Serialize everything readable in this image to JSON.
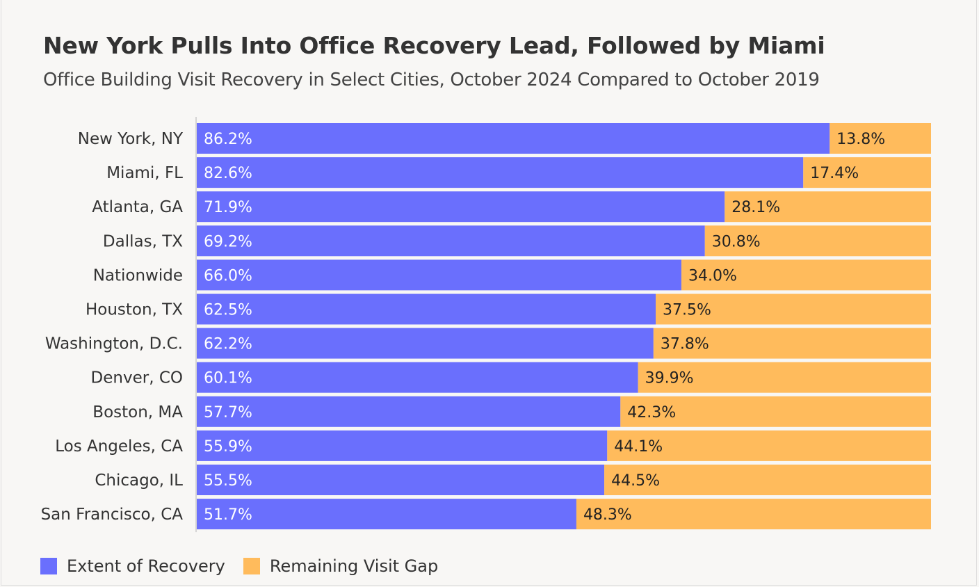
{
  "chart_data": {
    "type": "bar",
    "orientation": "horizontal",
    "stacked": true,
    "title": "New York Pulls Into Office Recovery Lead, Followed by Miami",
    "subtitle": "Office Building Visit Recovery in Select Cities, October 2024 Compared to October 2019",
    "categories": [
      "New York, NY",
      "Miami, FL",
      "Atlanta, GA",
      "Dallas, TX",
      "Nationwide",
      "Houston, TX",
      "Washington, D.C.",
      "Denver, CO",
      "Boston, MA",
      "Los Angeles, CA",
      "Chicago, IL",
      "San Francisco, CA"
    ],
    "series": [
      {
        "name": "Extent of Recovery",
        "color": "#6a6ffd",
        "values": [
          86.2,
          82.6,
          71.9,
          69.2,
          66.0,
          62.5,
          62.2,
          60.1,
          57.7,
          55.9,
          55.5,
          51.7
        ],
        "labels": [
          "86.2%",
          "82.6%",
          "71.9%",
          "69.2%",
          "66.0%",
          "62.5%",
          "62.2%",
          "60.1%",
          "57.7%",
          "55.9%",
          "55.5%",
          "51.7%"
        ]
      },
      {
        "name": "Remaining Visit Gap",
        "color": "#ffbb5c",
        "values": [
          13.8,
          17.4,
          28.1,
          30.8,
          34.0,
          37.5,
          37.8,
          39.9,
          42.3,
          44.1,
          44.5,
          48.3
        ],
        "labels": [
          "13.8%",
          "17.4%",
          "28.1%",
          "30.8%",
          "34.0%",
          "37.5%",
          "37.8%",
          "39.9%",
          "42.3%",
          "44.1%",
          "44.5%",
          "48.3%"
        ]
      }
    ],
    "xlim": [
      0,
      100
    ],
    "xlabel": "",
    "ylabel": "",
    "grid": false,
    "legend": "bottom-left"
  }
}
